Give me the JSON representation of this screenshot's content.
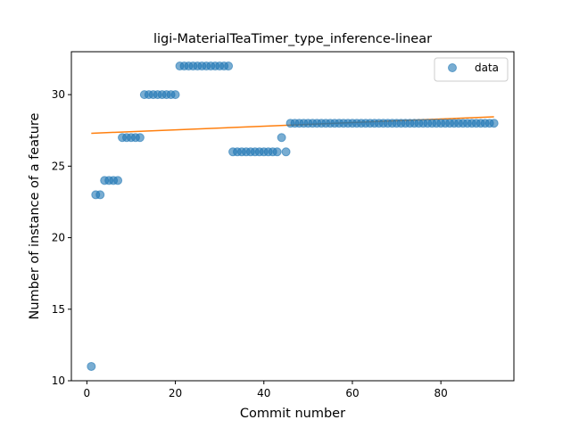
{
  "chart_data": {
    "type": "scatter",
    "title": "ligi-MaterialTeaTimer_type_inference-linear",
    "xlabel": "Commit number",
    "ylabel": "Number of instance of a feature",
    "xlim": [
      -3.5,
      96.5
    ],
    "ylim": [
      10.0,
      33.0
    ],
    "xticks": [
      0,
      20,
      40,
      60,
      80
    ],
    "yticks": [
      10,
      15,
      20,
      25,
      30
    ],
    "grid": false,
    "legend_position": "top-right",
    "series": [
      {
        "name": "data",
        "kind": "scatter",
        "color": "#1f77b4",
        "x": [
          1,
          2,
          3,
          4,
          5,
          6,
          7,
          8,
          9,
          10,
          11,
          12,
          13,
          14,
          15,
          16,
          17,
          18,
          19,
          20,
          21,
          22,
          23,
          24,
          25,
          26,
          27,
          28,
          29,
          30,
          31,
          32,
          33,
          34,
          35,
          36,
          37,
          38,
          39,
          40,
          41,
          42,
          43,
          44,
          45,
          46,
          47,
          48,
          49,
          50,
          51,
          52,
          53,
          54,
          55,
          56,
          57,
          58,
          59,
          60,
          61,
          62,
          63,
          64,
          65,
          66,
          67,
          68,
          69,
          70,
          71,
          72,
          73,
          74,
          75,
          76,
          77,
          78,
          79,
          80,
          81,
          82,
          83,
          84,
          85,
          86,
          87,
          88,
          89,
          90,
          91,
          92
        ],
        "y": [
          11,
          23,
          23,
          24,
          24,
          24,
          24,
          27,
          27,
          27,
          27,
          27,
          30,
          30,
          30,
          30,
          30,
          30,
          30,
          30,
          32,
          32,
          32,
          32,
          32,
          32,
          32,
          32,
          32,
          32,
          32,
          32,
          26,
          26,
          26,
          26,
          26,
          26,
          26,
          26,
          26,
          26,
          26,
          27,
          26,
          28,
          28,
          28,
          28,
          28,
          28,
          28,
          28,
          28,
          28,
          28,
          28,
          28,
          28,
          28,
          28,
          28,
          28,
          28,
          28,
          28,
          28,
          28,
          28,
          28,
          28,
          28,
          28,
          28,
          28,
          28,
          28,
          28,
          28,
          28,
          28,
          28,
          28,
          28,
          28,
          28,
          28,
          28,
          28,
          28,
          28,
          28
        ]
      },
      {
        "kind": "line",
        "color": "#ff7f0e",
        "x": [
          1,
          92
        ],
        "y": [
          27.3,
          28.45
        ]
      }
    ]
  }
}
